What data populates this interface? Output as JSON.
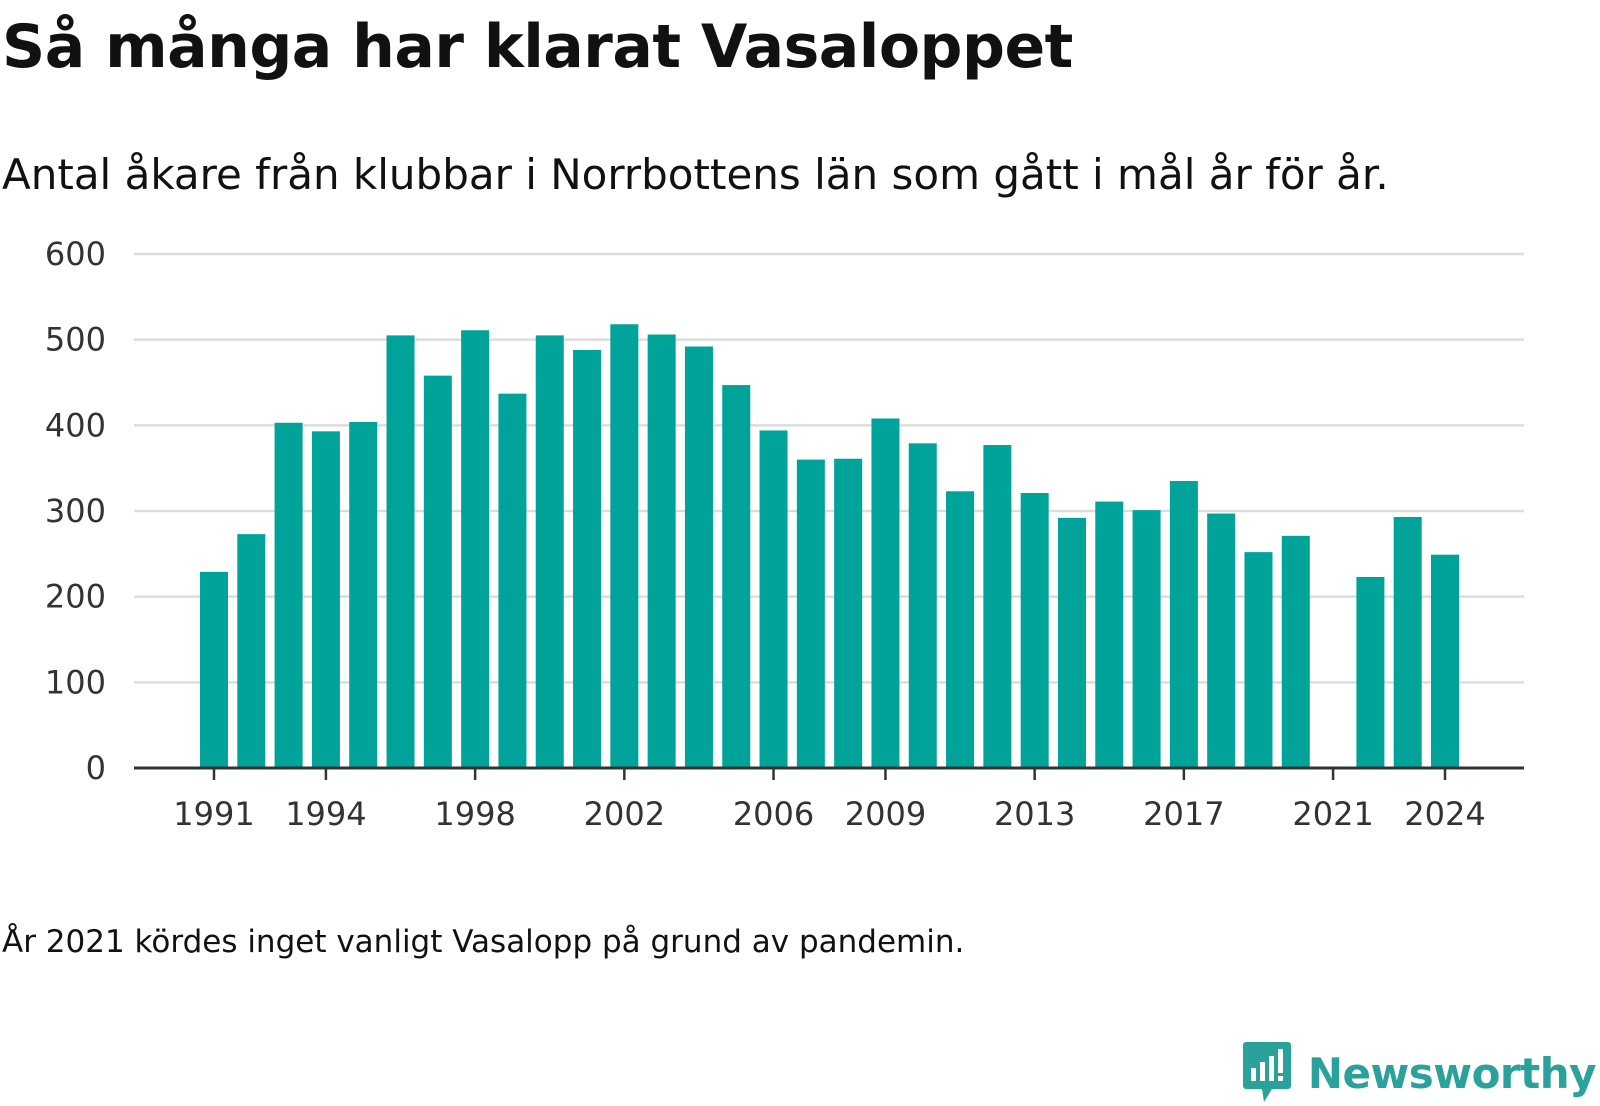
{
  "title": "Så många har klarat Vasaloppet",
  "subtitle": "Antal åkare från klubbar i Norrbottens län som gått i mål år för år.",
  "footnote": "År 2021 kördes inget vanligt Vasalopp på grund av pandemin.",
  "brand": {
    "name": "Newsworthy",
    "icon": "newsworthy-logo-icon",
    "color": "#2aa19a"
  },
  "colors": {
    "bar": "#00a399",
    "grid": "#dddddd",
    "axis": "#333333"
  },
  "chart_data": {
    "type": "bar",
    "title": "Så många har klarat Vasaloppet",
    "xlabel": "",
    "ylabel": "",
    "ylim": [
      0,
      600
    ],
    "yticks": [
      0,
      100,
      200,
      300,
      400,
      500,
      600
    ],
    "xticks": [
      1991,
      1994,
      1998,
      2002,
      2006,
      2009,
      2013,
      2017,
      2021,
      2024
    ],
    "grid": true,
    "categories": [
      1991,
      1992,
      1993,
      1994,
      1995,
      1996,
      1997,
      1998,
      1999,
      2000,
      2001,
      2002,
      2003,
      2004,
      2005,
      2006,
      2007,
      2008,
      2009,
      2010,
      2011,
      2012,
      2013,
      2014,
      2015,
      2016,
      2017,
      2018,
      2019,
      2020,
      2021,
      2022,
      2023,
      2024
    ],
    "values": [
      229,
      273,
      403,
      393,
      404,
      505,
      458,
      511,
      437,
      505,
      488,
      518,
      506,
      492,
      447,
      394,
      360,
      361,
      408,
      379,
      323,
      377,
      321,
      292,
      311,
      301,
      335,
      297,
      252,
      271,
      null,
      223,
      293,
      249
    ]
  }
}
